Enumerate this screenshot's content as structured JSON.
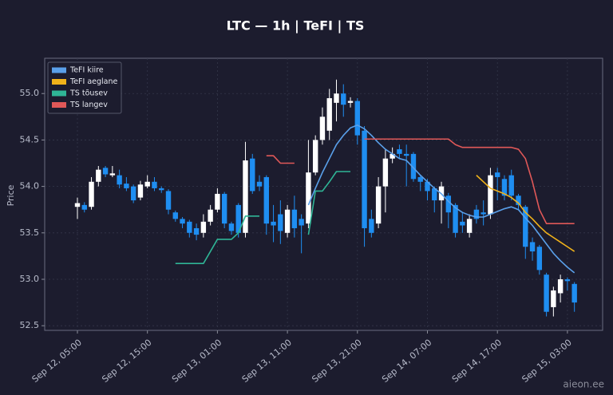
{
  "chart_data": {
    "type": "candlestick",
    "title": "LTC — 1h  |  TeFI  |  TS",
    "ylabel": "Price",
    "watermark": "aieon.ee",
    "x": [
      "Sep 12, 05:00",
      null,
      null,
      null,
      null,
      null,
      null,
      null,
      null,
      null,
      "Sep 12, 15:00",
      null,
      null,
      null,
      null,
      null,
      null,
      null,
      null,
      null,
      "Sep 13, 01:00",
      null,
      null,
      null,
      null,
      null,
      null,
      null,
      null,
      null,
      "Sep 13, 11:00",
      null,
      null,
      null,
      null,
      null,
      null,
      null,
      null,
      null,
      "Sep 13, 21:00",
      null,
      null,
      null,
      null,
      null,
      null,
      null,
      null,
      null,
      "Sep 14, 07:00",
      null,
      null,
      null,
      null,
      null,
      null,
      null,
      null,
      null,
      "Sep 14, 17:00",
      null,
      null,
      null,
      null,
      null,
      null,
      null,
      null,
      null,
      "Sep 15, 03:00",
      null
    ],
    "open": [
      53.78,
      53.8,
      53.78,
      54.05,
      54.2,
      54.12,
      54.12,
      54.03,
      54.0,
      53.88,
      54.0,
      54.05,
      53.98,
      53.95,
      53.72,
      53.65,
      53.62,
      53.55,
      53.5,
      53.62,
      53.75,
      53.92,
      53.6,
      53.8,
      53.5,
      54.3,
      54.05,
      54.1,
      53.62,
      53.7,
      53.5,
      53.75,
      53.65,
      53.6,
      54.15,
      54.5,
      54.6,
      54.9,
      55.0,
      54.9,
      54.92,
      54.6,
      53.65,
      53.6,
      54.0,
      54.3,
      54.4,
      54.35,
      54.35,
      54.1,
      54.05,
      53.98,
      53.85,
      53.9,
      53.8,
      53.62,
      53.5,
      53.75,
      53.72,
      53.7,
      54.15,
      54.08,
      54.12,
      53.9,
      53.78,
      53.4,
      53.35,
      53.05,
      52.7,
      52.85,
      53.0,
      52.95
    ],
    "high": [
      53.88,
      53.83,
      54.1,
      54.22,
      54.22,
      54.22,
      54.18,
      54.1,
      54.02,
      54.06,
      54.12,
      54.1,
      54.0,
      53.97,
      53.74,
      53.67,
      53.64,
      53.6,
      53.7,
      53.8,
      53.98,
      53.94,
      53.62,
      53.82,
      54.48,
      54.35,
      54.12,
      54.12,
      53.8,
      53.85,
      53.8,
      53.9,
      53.7,
      54.5,
      54.55,
      54.85,
      55.05,
      55.15,
      55.1,
      54.96,
      54.95,
      54.65,
      53.75,
      54.1,
      54.4,
      54.42,
      54.45,
      54.45,
      54.37,
      54.12,
      54.08,
      54.0,
      54.05,
      53.93,
      53.82,
      53.72,
      53.7,
      53.8,
      53.85,
      54.2,
      54.2,
      54.12,
      54.18,
      53.92,
      53.8,
      53.45,
      53.37,
      53.07,
      52.92,
      53.05,
      53.02,
      52.97
    ],
    "low": [
      53.65,
      53.72,
      53.75,
      54.0,
      54.1,
      54.1,
      53.98,
      53.95,
      53.82,
      53.85,
      53.98,
      53.95,
      53.93,
      53.7,
      53.62,
      53.55,
      53.45,
      53.42,
      53.45,
      53.58,
      53.72,
      53.55,
      53.48,
      53.45,
      53.45,
      53.92,
      53.95,
      53.48,
      53.4,
      53.38,
      53.45,
      53.45,
      53.28,
      53.55,
      54.12,
      54.45,
      54.5,
      54.7,
      54.75,
      54.85,
      54.45,
      53.35,
      53.45,
      53.55,
      53.72,
      54.25,
      54.3,
      54.0,
      54.05,
      53.95,
      53.85,
      53.72,
      53.6,
      53.55,
      53.45,
      53.5,
      53.45,
      53.6,
      53.58,
      53.65,
      53.85,
      53.85,
      53.85,
      53.75,
      53.22,
      53.2,
      53.05,
      52.6,
      52.6,
      52.75,
      52.88,
      52.65
    ],
    "close": [
      53.82,
      53.75,
      54.05,
      54.18,
      54.13,
      54.14,
      54.02,
      53.98,
      53.85,
      54.02,
      54.05,
      53.98,
      53.96,
      53.75,
      53.65,
      53.6,
      53.5,
      53.48,
      53.62,
      53.75,
      53.92,
      53.6,
      53.52,
      53.5,
      54.28,
      53.95,
      54.0,
      53.6,
      53.58,
      53.52,
      53.75,
      53.55,
      53.58,
      54.15,
      54.5,
      54.75,
      54.95,
      55.0,
      54.88,
      54.92,
      54.55,
      53.55,
      53.5,
      54.0,
      54.3,
      54.35,
      54.35,
      54.33,
      54.08,
      54.05,
      53.95,
      53.85,
      54.0,
      53.72,
      53.5,
      53.58,
      53.65,
      53.65,
      53.7,
      54.12,
      54.1,
      53.9,
      53.9,
      53.8,
      53.35,
      53.3,
      53.1,
      52.65,
      52.88,
      53.0,
      52.98,
      52.75
    ],
    "up_color": "#ffffff",
    "down_color": "#1f8ef1",
    "series": [
      {
        "name": "TeFI kiire",
        "color": "#5aa0ea",
        "values": [
          null,
          null,
          null,
          null,
          null,
          null,
          null,
          null,
          null,
          null,
          null,
          null,
          null,
          null,
          null,
          null,
          null,
          null,
          null,
          null,
          null,
          null,
          null,
          null,
          null,
          null,
          null,
          null,
          null,
          null,
          null,
          null,
          null,
          53.8,
          53.98,
          54.15,
          54.3,
          54.45,
          54.55,
          54.63,
          54.66,
          54.62,
          54.55,
          54.47,
          54.4,
          54.35,
          54.3,
          54.28,
          54.2,
          54.12,
          54.05,
          53.98,
          53.92,
          53.84,
          53.77,
          53.72,
          53.69,
          53.67,
          53.67,
          53.7,
          53.73,
          53.76,
          53.78,
          53.75,
          53.66,
          53.58,
          53.48,
          53.38,
          53.28,
          53.2,
          53.13,
          53.07
        ]
      },
      {
        "name": "TeFI aeglane",
        "color": "#f0b21a",
        "values": [
          null,
          null,
          null,
          null,
          null,
          null,
          null,
          null,
          null,
          null,
          null,
          null,
          null,
          null,
          null,
          null,
          null,
          null,
          null,
          null,
          null,
          null,
          null,
          null,
          null,
          null,
          null,
          null,
          null,
          null,
          null,
          null,
          null,
          null,
          null,
          null,
          null,
          null,
          null,
          null,
          null,
          null,
          null,
          null,
          null,
          null,
          null,
          null,
          null,
          null,
          null,
          null,
          null,
          null,
          null,
          null,
          null,
          54.12,
          54.05,
          53.98,
          53.95,
          53.92,
          53.88,
          53.82,
          53.72,
          53.65,
          53.57,
          53.5,
          53.45,
          53.4,
          53.35,
          53.3
        ]
      },
      {
        "name": "TS tõusev",
        "color": "#2fb596",
        "values": [
          null,
          null,
          null,
          null,
          null,
          null,
          null,
          null,
          null,
          null,
          null,
          null,
          null,
          null,
          53.17,
          53.17,
          53.17,
          53.17,
          53.17,
          53.3,
          53.43,
          53.43,
          53.43,
          53.5,
          53.68,
          53.68,
          53.68,
          null,
          null,
          null,
          null,
          null,
          null,
          53.48,
          53.95,
          53.95,
          54.05,
          54.16,
          54.16,
          54.16,
          null,
          null,
          null,
          null,
          null,
          null,
          null,
          null,
          null,
          null,
          null,
          null,
          null,
          null,
          null,
          null,
          null,
          null,
          null,
          null,
          null,
          null,
          null,
          null,
          null,
          null,
          null,
          null,
          null,
          null,
          null,
          null
        ]
      },
      {
        "name": "TS langev",
        "color": "#e05858",
        "values": [
          null,
          null,
          null,
          null,
          null,
          null,
          null,
          null,
          null,
          null,
          null,
          null,
          null,
          null,
          null,
          null,
          null,
          null,
          null,
          null,
          null,
          null,
          null,
          null,
          null,
          null,
          null,
          54.33,
          54.33,
          54.25,
          54.25,
          54.25,
          null,
          null,
          null,
          null,
          null,
          null,
          null,
          null,
          null,
          54.51,
          54.51,
          54.51,
          54.51,
          54.51,
          54.51,
          54.51,
          54.51,
          54.51,
          54.51,
          54.51,
          54.51,
          54.51,
          54.45,
          54.42,
          54.42,
          54.42,
          54.42,
          54.42,
          54.42,
          54.42,
          54.42,
          54.4,
          54.3,
          54.05,
          53.75,
          53.6,
          53.6,
          53.6,
          53.6,
          53.6
        ]
      }
    ],
    "ylim": [
      52.45,
      55.38
    ],
    "yticks": [
      {
        "value": 52.5,
        "label": "52.5"
      },
      {
        "value": 53,
        "label": "53.0"
      },
      53.5,
      {
        "value": 54,
        "label": "54.0"
      },
      54.5,
      {
        "value": 55,
        "label": "55.0"
      }
    ],
    "grid": true,
    "legend": "upper left"
  }
}
